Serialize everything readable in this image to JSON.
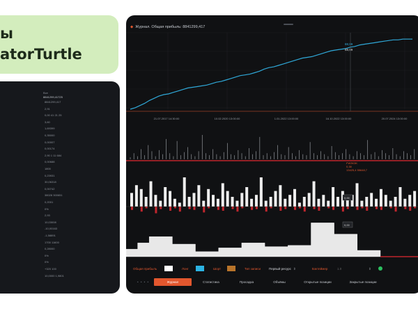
{
  "title_card": {
    "line1": "ы",
    "line2": "atorTurtle"
  },
  "stats": {
    "header_label": "Все",
    "header_value": "8841299,41725",
    "rows": [
      {
        "label": "",
        "value": "8841299,417"
      },
      {
        "label": "",
        "value": "2,91"
      },
      {
        "label": "",
        "value": "0,00 41 21 25"
      },
      {
        "label": "",
        "value": "3,60"
      },
      {
        "label": "",
        "value": "1,69399"
      },
      {
        "label": "",
        "value": "0,35000"
      },
      {
        "label": "",
        "value": "0,00007"
      },
      {
        "label": "",
        "value": "0,00174"
      },
      {
        "label": "",
        "value": "2,90 1 11 684"
      },
      {
        "label": "",
        "value": "0,00688"
      },
      {
        "label": "",
        "value": "1800"
      },
      {
        "label": "",
        "value": "0,23931"
      },
      {
        "label": "",
        "value": "30,06318"
      },
      {
        "label": "",
        "value": "0,00742"
      },
      {
        "label": "",
        "value": "38028 300651"
      },
      {
        "label": "",
        "value": "0,2001"
      },
      {
        "label": "",
        "value": "0%"
      },
      {
        "label": "",
        "value": "2,93"
      },
      {
        "label": "",
        "value": "10,03008"
      },
      {
        "label": "",
        "value": "-10,00163"
      },
      {
        "label": "",
        "value": "-1,58891"
      },
      {
        "label": "",
        "value": "1700 11600"
      },
      {
        "label": "",
        "value": "0,28000"
      },
      {
        "label": "",
        "value": "0%"
      },
      {
        "label": "",
        "value": "0%"
      },
      {
        "label": "",
        "value": "+320 100"
      },
      {
        "label": "",
        "value": "10,0000 1,9801"
      }
    ]
  },
  "app": {
    "header": "Журнал. Общая прибыль: 8841299,417",
    "colors": {
      "equity": "#2fa8d8",
      "accent": "#e2572e",
      "long": "#2bb3e3",
      "short": "#b8742a",
      "red": "#c0262d",
      "bars": "#eeeeee"
    }
  },
  "chart_data": {
    "type": "line",
    "series": [
      {
        "values": [
          0,
          2,
          5,
          8,
          12,
          15,
          18,
          20,
          21,
          23,
          25,
          27,
          29,
          30,
          31,
          32,
          33,
          35,
          37,
          38,
          40,
          42,
          44,
          46,
          47,
          48,
          50,
          52,
          55,
          57,
          58,
          60,
          62,
          64,
          66,
          68,
          70,
          71,
          72,
          74,
          76,
          78,
          80,
          81,
          82,
          83,
          85,
          86,
          88,
          89,
          90,
          91,
          92,
          93,
          94,
          95,
          95,
          96,
          96,
          96
        ]
      }
    ],
    "x_tick_labels": [
      "21.07.2017 14:30:00",
      "10.02.2020 13:00:00",
      "1.01.2022 13:00:00",
      "16.10.2022 13:00:00",
      "20.07.2024 13:00:00"
    ],
    "point_labels": [
      "88,99",
      "88,99"
    ],
    "red_markers": [
      38,
      40,
      43,
      46,
      49,
      52,
      55,
      58,
      61,
      64,
      67,
      70,
      73,
      76,
      79,
      82,
      85,
      88,
      91,
      94,
      97
    ]
  },
  "sub_charts": {
    "spikes": [
      2,
      6,
      3,
      10,
      4,
      14,
      8,
      3,
      9,
      5,
      20,
      6,
      3,
      18,
      4,
      7,
      12,
      5,
      3,
      8,
      24,
      6,
      4,
      10,
      5,
      3,
      7,
      16,
      5,
      4,
      9,
      6,
      3,
      11,
      5,
      8,
      22,
      4,
      6,
      3,
      7,
      14,
      5,
      4,
      12,
      6,
      3,
      9,
      5,
      4,
      17,
      6,
      4,
      8,
      5,
      3,
      13,
      7,
      4,
      6,
      10,
      5,
      3,
      8,
      6,
      4,
      19,
      5,
      7,
      3,
      9,
      6,
      4,
      11,
      5,
      3,
      8,
      6,
      4,
      10
    ],
    "spike_label_1": "FW3K3K",
    "spike_label_2": "0,38",
    "spike_label_3": "13425,4 55648,7",
    "pos_bars": [
      14,
      22,
      18,
      10,
      26,
      12,
      6,
      20,
      16,
      8,
      4,
      30,
      10,
      14,
      22,
      6,
      18,
      12,
      8,
      24,
      16,
      10,
      6,
      14,
      20,
      8,
      12,
      30,
      6,
      10,
      16,
      22,
      8,
      12,
      18,
      4,
      10,
      14,
      26,
      8,
      12,
      6,
      20,
      10,
      16,
      8,
      12,
      24,
      6,
      10,
      14,
      8,
      18,
      12,
      6,
      10,
      20,
      8,
      12,
      16
    ],
    "neg_bars": [
      4,
      0,
      6,
      2,
      0,
      8,
      3,
      0,
      5,
      2,
      6,
      0,
      3,
      4,
      0,
      7,
      2,
      0,
      4,
      5,
      0,
      3,
      6,
      2,
      0,
      4,
      3,
      0,
      6,
      2,
      0,
      5,
      3,
      0,
      4,
      2,
      6,
      0,
      3,
      5,
      0,
      2,
      4,
      0,
      6,
      3,
      0,
      4,
      2,
      5,
      0,
      3,
      4,
      0,
      2,
      6,
      0,
      3,
      5,
      2
    ],
    "pos_bars_label": "0,00",
    "steps": [
      12,
      22,
      32,
      32,
      20,
      20,
      8,
      8,
      14,
      14,
      22,
      22,
      16,
      16,
      18,
      18,
      54,
      54,
      36,
      36,
      10,
      10
    ],
    "step_label": "0,00"
  },
  "controls": {
    "all_trades_label": "Общая прибыль",
    "long_label": "Лонг",
    "short_label": "Шорт",
    "all_trades_type": "Тип записи",
    "period_select": "Первый ресурс",
    "backtest_label": "Бэктеймер",
    "backtest_value": "1.0"
  },
  "tabs": {
    "dots": "• • • •",
    "items": [
      "Журнал",
      "Статистика",
      "Просадка",
      "Объёмы",
      "Открытые позиции",
      "Закрытые позиции"
    ]
  }
}
